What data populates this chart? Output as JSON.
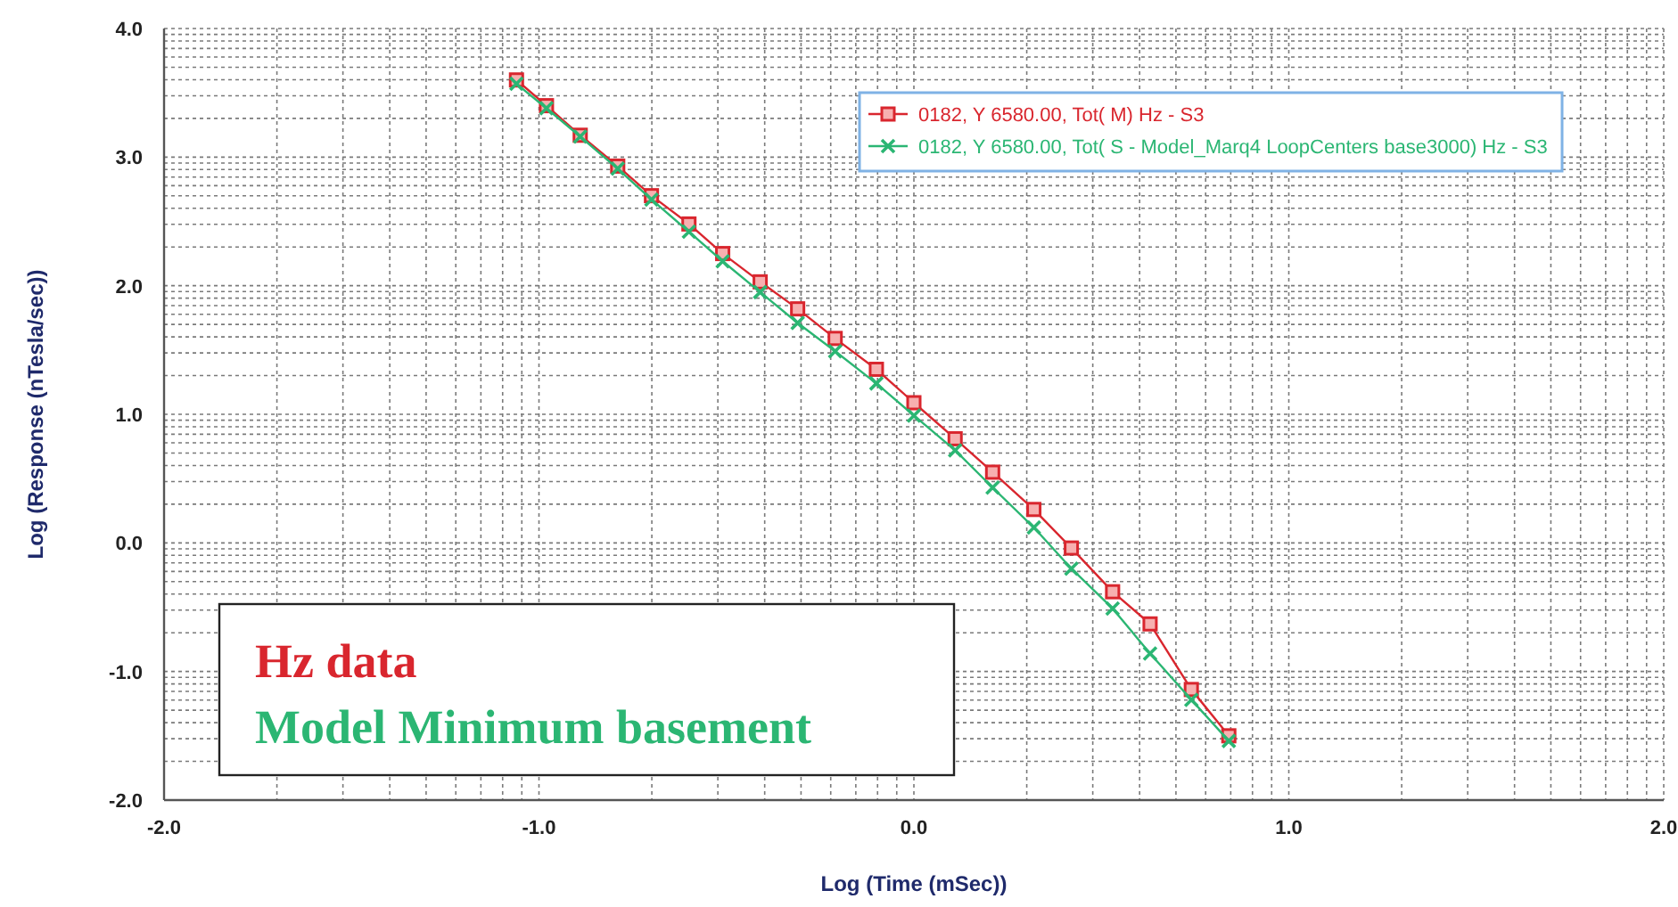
{
  "chart_data": {
    "type": "line",
    "xlabel": "Log (Time (mSec))",
    "ylabel": "Log (Response (nTesla/sec))",
    "x": [
      -1.06,
      -0.98,
      -0.89,
      -0.79,
      -0.7,
      -0.6,
      -0.51,
      -0.41,
      -0.31,
      -0.21,
      -0.1,
      0.0,
      0.11,
      0.21,
      0.32,
      0.42,
      0.53,
      0.63,
      0.74,
      0.84
    ],
    "series": [
      {
        "name": "0182, Y 6580.00, Tot( M) Hz - S3",
        "color": "#d9262e",
        "marker": "square",
        "values": [
          3.6,
          3.4,
          3.17,
          2.93,
          2.7,
          2.48,
          2.25,
          2.03,
          1.82,
          1.59,
          1.35,
          1.09,
          0.81,
          0.55,
          0.26,
          -0.04,
          -0.38,
          -0.63,
          -1.14,
          -1.5
        ]
      },
      {
        "name": "0182, Y 6580.00, Tot( S - Model_Marq4 LoopCenters base3000) Hz - S3",
        "color": "#2bb673",
        "marker": "cross",
        "values": [
          3.57,
          3.38,
          3.16,
          2.91,
          2.67,
          2.42,
          2.19,
          1.95,
          1.71,
          1.49,
          1.24,
          0.99,
          0.72,
          0.43,
          0.12,
          -0.2,
          -0.51,
          -0.86,
          -1.22,
          -1.54
        ]
      }
    ],
    "xlim": [
      -2,
      2
    ],
    "xticks": [
      {
        "value": -2,
        "label": "-2.0"
      },
      {
        "value": -1,
        "label": "-1.0"
      },
      {
        "value": 0,
        "label": "0.0"
      },
      {
        "value": 1,
        "label": "1.0"
      },
      {
        "value": 2,
        "label": "2.0"
      }
    ],
    "ylim": [
      -2,
      4
    ],
    "yticks": [
      {
        "value": -2,
        "label": "-2.0"
      },
      {
        "value": -1,
        "label": "-1.0"
      },
      {
        "value": 0,
        "label": "0.0"
      },
      {
        "value": 1,
        "label": "1.0"
      },
      {
        "value": 2,
        "label": "2.0"
      },
      {
        "value": 3,
        "label": "3.0"
      },
      {
        "value": 4,
        "label": "4.0"
      }
    ],
    "grid": true,
    "legend": "top right",
    "line_style": "solid",
    "annotations": [
      "Hz data",
      "Model Minimum basement"
    ]
  }
}
